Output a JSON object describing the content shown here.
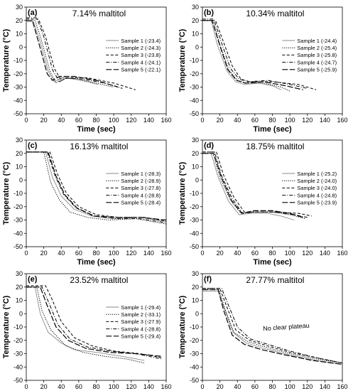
{
  "figure": {
    "panels": [
      {
        "letter": "(a)",
        "title": "7.14% maltitol",
        "xlabel": "Time (sec)",
        "ylabel": "Temperature (°C)"
      },
      {
        "letter": "(b)",
        "title": "10.34% maltitol",
        "xlabel": "Time (sec)",
        "ylabel": "Temperature (°C)"
      },
      {
        "letter": "(c)",
        "title": "16.13% maltitol",
        "xlabel": "Time (sec)",
        "ylabel": "Temperature (°C)"
      },
      {
        "letter": "(d)",
        "title": "18.75% maltitol",
        "xlabel": "Time (sec)",
        "ylabel": "Temperature (°C)"
      },
      {
        "letter": "(e)",
        "title": "23.52% maltitol",
        "xlabel": "Time (sec)",
        "ylabel": "Temperature (°C)"
      },
      {
        "letter": "(f)",
        "title": "27.77% maltitol",
        "xlabel": "Time (sec)",
        "ylabel": "Temperature (°C)"
      }
    ],
    "line_color": "#000000"
  },
  "chart_data": [
    {
      "type": "line",
      "title": "7.14% maltitol",
      "xlabel": "Time (sec)",
      "ylabel": "Temperature (°C)",
      "xlim": [
        0,
        160
      ],
      "ylim": [
        -50,
        30
      ],
      "xticks": [
        0,
        20,
        40,
        60,
        80,
        100,
        120,
        140,
        160
      ],
      "yticks": [
        -50,
        -40,
        -30,
        -20,
        -10,
        0,
        10,
        20,
        30
      ],
      "legend_position": "right",
      "annotations": [],
      "series": [
        {
          "name": "Sample 1 (-23.4)",
          "style": "solid-gray",
          "x": [
            0,
            8,
            15,
            25,
            32,
            40,
            55,
            70,
            82
          ],
          "y": [
            19,
            19,
            6,
            -18,
            -26,
            -23,
            -24,
            -26,
            -28
          ]
        },
        {
          "name": "Sample 2 (-24.3)",
          "style": "dotted",
          "x": [
            0,
            10,
            17,
            27,
            34,
            42,
            60,
            80,
            100
          ],
          "y": [
            20,
            20,
            6,
            -18,
            -27,
            -23,
            -24,
            -27,
            -30
          ]
        },
        {
          "name": "Sample 3 (-23.8)",
          "style": "dashed",
          "x": [
            0,
            14,
            22,
            32,
            40,
            48,
            70,
            100,
            125
          ],
          "y": [
            21,
            21,
            8,
            -16,
            -25,
            -23,
            -23,
            -27,
            -32
          ]
        },
        {
          "name": "Sample 4 (-24.1)",
          "style": "dash-dot",
          "x": [
            0,
            12,
            20,
            30,
            38,
            46,
            65,
            90,
            110
          ],
          "y": [
            22,
            22,
            8,
            -17,
            -26,
            -23,
            -24,
            -27,
            -31
          ]
        },
        {
          "name": "Sample 5 (-22.1)",
          "style": "long-dash",
          "x": [
            0,
            7,
            14,
            24,
            30,
            38,
            55,
            80,
            105
          ],
          "y": [
            20,
            20,
            4,
            -20,
            -25,
            -22,
            -22,
            -25,
            -30
          ]
        }
      ]
    },
    {
      "type": "line",
      "title": "10.34% maltitol",
      "xlabel": "Time (sec)",
      "ylabel": "Temperature (°C)",
      "xlim": [
        0,
        160
      ],
      "ylim": [
        -50,
        30
      ],
      "xticks": [
        0,
        20,
        40,
        60,
        80,
        100,
        120,
        140,
        160
      ],
      "yticks": [
        -50,
        -40,
        -30,
        -20,
        -10,
        0,
        10,
        20,
        30
      ],
      "legend_position": "right",
      "annotations": [],
      "series": [
        {
          "name": "Sample 1 (-24.4)",
          "style": "solid-gray",
          "x": [
            0,
            10,
            17,
            28,
            38,
            48,
            65,
            80,
            90
          ],
          "y": [
            20,
            20,
            2,
            -18,
            -26,
            -28,
            -27,
            -29,
            -32
          ]
        },
        {
          "name": "Sample 2 (-25.4)",
          "style": "dotted",
          "x": [
            0,
            12,
            20,
            30,
            40,
            50,
            70,
            90,
            100
          ],
          "y": [
            20,
            20,
            2,
            -17,
            -25,
            -27,
            -27,
            -30,
            -33
          ]
        },
        {
          "name": "Sample 3 (-25.8)",
          "style": "dashed",
          "x": [
            0,
            15,
            24,
            34,
            44,
            54,
            80,
            110,
            130
          ],
          "y": [
            20,
            20,
            4,
            -14,
            -24,
            -26,
            -26,
            -28,
            -32
          ]
        },
        {
          "name": "Sample 4 (-24.7)",
          "style": "dash-dot",
          "x": [
            0,
            13,
            22,
            32,
            42,
            52,
            75,
            100,
            120
          ],
          "y": [
            21,
            21,
            3,
            -16,
            -24,
            -26,
            -25,
            -28,
            -31
          ]
        },
        {
          "name": "Sample 5 (-25.9)",
          "style": "long-dash",
          "x": [
            0,
            11,
            19,
            29,
            39,
            49,
            70,
            95,
            115
          ],
          "y": [
            20,
            20,
            3,
            -17,
            -25,
            -27,
            -26,
            -29,
            -32
          ]
        }
      ]
    },
    {
      "type": "line",
      "title": "16.13% maltitol",
      "xlabel": "Time (sec)",
      "ylabel": "Temperature (°C)",
      "xlim": [
        0,
        160
      ],
      "ylim": [
        -50,
        30
      ],
      "xticks": [
        0,
        20,
        40,
        60,
        80,
        100,
        120,
        140,
        160
      ],
      "yticks": [
        -50,
        -40,
        -30,
        -20,
        -10,
        0,
        10,
        20,
        30
      ],
      "legend_position": "right",
      "annotations": [],
      "series": [
        {
          "name": "Sample 1 (-28.3)",
          "style": "solid-gray",
          "x": [
            0,
            22,
            30,
            40,
            55,
            75,
            100,
            130,
            160
          ],
          "y": [
            21,
            21,
            2,
            -12,
            -22,
            -27,
            -29,
            -28,
            -31
          ]
        },
        {
          "name": "Sample 2 (-28.9)",
          "style": "dotted",
          "x": [
            0,
            20,
            28,
            38,
            50,
            70,
            95,
            125,
            160
          ],
          "y": [
            21,
            21,
            -2,
            -15,
            -24,
            -28,
            -30,
            -29,
            -33
          ]
        },
        {
          "name": "Sample 3 (-27.8)",
          "style": "dashed",
          "x": [
            0,
            27,
            36,
            46,
            60,
            80,
            105,
            135,
            160
          ],
          "y": [
            21,
            21,
            4,
            -10,
            -20,
            -26,
            -28,
            -28,
            -31
          ]
        },
        {
          "name": "Sample 4 (-28.8)",
          "style": "dash-dot",
          "x": [
            0,
            24,
            33,
            43,
            57,
            77,
            102,
            130,
            160
          ],
          "y": [
            21,
            21,
            3,
            -11,
            -21,
            -27,
            -29,
            -29,
            -32
          ]
        },
        {
          "name": "Sample 5 (-28.4)",
          "style": "long-dash",
          "x": [
            0,
            25,
            34,
            44,
            58,
            78,
            104,
            132,
            160
          ],
          "y": [
            21,
            21,
            3,
            -11,
            -21,
            -27,
            -28,
            -28,
            -30
          ]
        }
      ]
    },
    {
      "type": "line",
      "title": "18.75% maltitol",
      "xlabel": "Time (sec)",
      "ylabel": "Temperature (°C)",
      "xlim": [
        0,
        160
      ],
      "ylim": [
        -50,
        30
      ],
      "xticks": [
        0,
        20,
        40,
        60,
        80,
        100,
        120,
        140,
        160
      ],
      "yticks": [
        -50,
        -40,
        -30,
        -20,
        -10,
        0,
        10,
        20,
        30
      ],
      "legend_position": "right",
      "annotations": [],
      "series": [
        {
          "name": "Sample 1 (-25.2)",
          "style": "solid-gray",
          "x": [
            0,
            10,
            18,
            30,
            42,
            55,
            75,
            90,
            105
          ],
          "y": [
            20,
            20,
            2,
            -16,
            -26,
            -25,
            -25,
            -27,
            -30
          ]
        },
        {
          "name": "Sample 2 (-24.0)",
          "style": "dotted",
          "x": [
            0,
            12,
            20,
            32,
            44,
            58,
            80,
            100,
            118
          ],
          "y": [
            20,
            20,
            2,
            -15,
            -25,
            -24,
            -24,
            -26,
            -29
          ]
        },
        {
          "name": "Sample 3 (-24.0)",
          "style": "dashed",
          "x": [
            0,
            16,
            24,
            36,
            48,
            62,
            85,
            110,
            125
          ],
          "y": [
            21,
            21,
            4,
            -13,
            -24,
            -24,
            -24,
            -25,
            -27
          ]
        },
        {
          "name": "Sample 4 (-24.8)",
          "style": "dash-dot",
          "x": [
            0,
            14,
            22,
            34,
            46,
            60,
            82,
            105,
            120
          ],
          "y": [
            21,
            21,
            3,
            -14,
            -25,
            -24,
            -24,
            -26,
            -28
          ]
        },
        {
          "name": "Sample 5 (-23.9)",
          "style": "long-dash",
          "x": [
            0,
            13,
            21,
            33,
            45,
            59,
            80,
            100,
            115
          ],
          "y": [
            20,
            20,
            3,
            -15,
            -25,
            -23,
            -23,
            -25,
            -28
          ]
        }
      ]
    },
    {
      "type": "line",
      "title": "23.52% maltitol",
      "xlabel": "Time (sec)",
      "ylabel": "Temperature (°C)",
      "xlim": [
        0,
        160
      ],
      "ylim": [
        -50,
        30
      ],
      "xticks": [
        0,
        20,
        40,
        60,
        80,
        100,
        120,
        140,
        160
      ],
      "yticks": [
        -50,
        -40,
        -30,
        -20,
        -10,
        0,
        10,
        20,
        30
      ],
      "legend_position": "right",
      "annotations": [],
      "series": [
        {
          "name": "Sample 1 (-29.4)",
          "style": "solid-gray",
          "x": [
            0,
            10,
            16,
            25,
            40,
            55,
            80,
            110,
            135
          ],
          "y": [
            20,
            20,
            0,
            -14,
            -22,
            -27,
            -29,
            -32,
            -35
          ]
        },
        {
          "name": "Sample 2 (-33.1)",
          "style": "dotted",
          "x": [
            0,
            12,
            18,
            28,
            45,
            65,
            90,
            115,
            135
          ],
          "y": [
            20,
            20,
            2,
            -12,
            -24,
            -29,
            -32,
            -34,
            -37
          ]
        },
        {
          "name": "Sample 3 (-27.9)",
          "style": "dashed",
          "x": [
            0,
            22,
            30,
            40,
            55,
            75,
            100,
            130,
            155
          ],
          "y": [
            21,
            21,
            10,
            -6,
            -18,
            -24,
            -28,
            -30,
            -33
          ]
        },
        {
          "name": "Sample 4 (-28.8)",
          "style": "dash-dot",
          "x": [
            0,
            18,
            26,
            36,
            50,
            70,
            95,
            125,
            155
          ],
          "y": [
            20,
            20,
            8,
            -8,
            -19,
            -25,
            -28,
            -30,
            -34
          ]
        },
        {
          "name": "Sample 5 (-29.4)",
          "style": "long-dash",
          "x": [
            0,
            16,
            24,
            34,
            48,
            68,
            95,
            125,
            155
          ],
          "y": [
            20,
            20,
            6,
            -10,
            -20,
            -26,
            -29,
            -30,
            -32
          ]
        }
      ]
    },
    {
      "type": "line",
      "title": "27.77% maltitol",
      "xlabel": "Time (sec)",
      "ylabel": "Temperature (°C)",
      "xlim": [
        0,
        160
      ],
      "ylim": [
        -50,
        30
      ],
      "xticks": [
        0,
        20,
        40,
        60,
        80,
        100,
        120,
        140,
        160
      ],
      "yticks": [
        -50,
        -40,
        -30,
        -20,
        -10,
        0,
        10,
        20,
        30
      ],
      "legend_position": "none",
      "annotations": [
        "No clear plateau"
      ],
      "series": [
        {
          "name": "",
          "style": "solid-gray",
          "x": [
            0,
            18,
            25,
            35,
            50,
            70,
            100,
            130,
            160
          ],
          "y": [
            17,
            17,
            4,
            -14,
            -22,
            -26,
            -31,
            -35,
            -38
          ]
        },
        {
          "name": "",
          "style": "dotted",
          "x": [
            0,
            19,
            26,
            36,
            52,
            72,
            100,
            130,
            160
          ],
          "y": [
            18,
            18,
            3,
            -14,
            -21,
            -25,
            -30,
            -34,
            -37
          ]
        },
        {
          "name": "",
          "style": "dashed",
          "x": [
            0,
            20,
            28,
            38,
            54,
            74,
            100,
            130,
            160
          ],
          "y": [
            19,
            19,
            5,
            -12,
            -20,
            -24,
            -29,
            -33,
            -37
          ]
        },
        {
          "name": "",
          "style": "dash-dot",
          "x": [
            0,
            22,
            30,
            40,
            55,
            75,
            100,
            130,
            160
          ],
          "y": [
            19,
            19,
            6,
            -10,
            -19,
            -23,
            -28,
            -33,
            -37
          ]
        },
        {
          "name": "",
          "style": "long-dash",
          "x": [
            0,
            18,
            24,
            34,
            48,
            68,
            95,
            125,
            160
          ],
          "y": [
            18,
            18,
            3,
            -16,
            -23,
            -27,
            -31,
            -35,
            -38
          ]
        }
      ]
    }
  ]
}
